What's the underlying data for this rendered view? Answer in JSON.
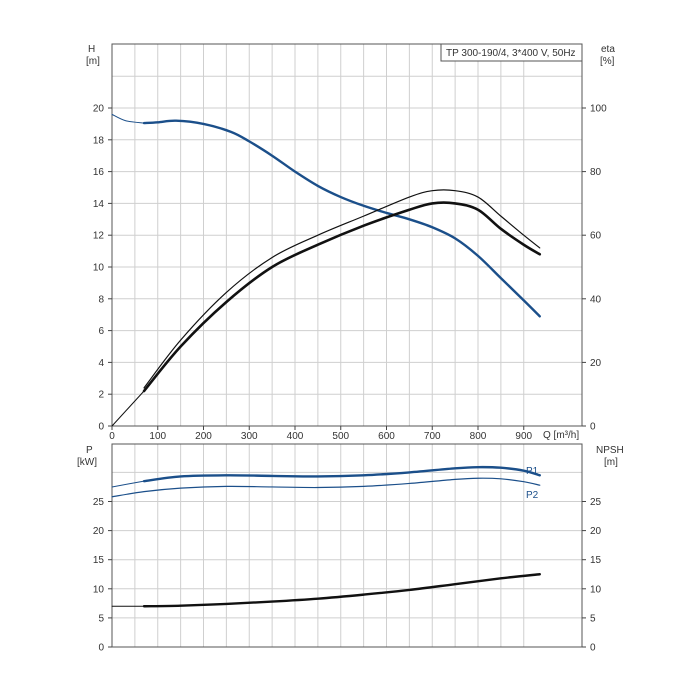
{
  "colors": {
    "blue": "#1b4f8a",
    "black": "#111111",
    "grid": "#cfcfcf"
  },
  "chart_data": [
    {
      "type": "line",
      "title": "TP 300-190/4, 3*400 V, 50Hz",
      "left_axis_label": [
        "H",
        "[m]"
      ],
      "right_axis_label": [
        "eta",
        "[%]"
      ],
      "x_axis_label": "Q [m³/h]",
      "xlim": [
        0,
        940
      ],
      "ylim_left": [
        0,
        22
      ],
      "ylim_right": [
        0,
        100
      ],
      "x_ticks": [
        "0",
        "100",
        "200",
        "300",
        "400",
        "500",
        "600",
        "700",
        "800",
        "900"
      ],
      "left_ticks": [
        "0",
        "2",
        "4",
        "6",
        "8",
        "10",
        "12",
        "14",
        "16",
        "18",
        "20"
      ],
      "right_ticks": [
        "0",
        "20",
        "40",
        "60",
        "80",
        "100"
      ],
      "grid": true,
      "series": [
        {
          "axis": "left",
          "color": "#1b4f8a",
          "width": 2.4,
          "x": [
            70,
            100,
            140,
            200,
            260,
            300,
            350,
            400,
            450,
            500,
            550,
            600,
            650,
            700,
            750,
            800,
            850,
            900,
            935
          ],
          "y": [
            19.05,
            19.1,
            19.2,
            19.0,
            18.5,
            17.9,
            17.0,
            16.0,
            15.1,
            14.4,
            13.85,
            13.4,
            13.0,
            12.5,
            11.8,
            10.7,
            9.3,
            7.9,
            6.9
          ]
        },
        {
          "axis": "left",
          "color": "#1b4f8a",
          "width": 1.0,
          "dashless": true,
          "x": [
            0,
            30,
            70
          ],
          "y": [
            19.6,
            19.2,
            19.05
          ]
        },
        {
          "axis": "right",
          "color": "#111111",
          "width": 1.2,
          "x": [
            70,
            150,
            250,
            350,
            450,
            550,
            650,
            700,
            750,
            800,
            850,
            900,
            935
          ],
          "y": [
            12,
            27,
            42,
            53,
            60,
            66,
            72,
            74,
            74,
            72,
            66,
            60,
            56
          ]
        },
        {
          "axis": "right",
          "color": "#111111",
          "width": 2.6,
          "x": [
            70,
            150,
            250,
            350,
            450,
            550,
            650,
            700,
            750,
            800,
            850,
            900,
            935
          ],
          "y": [
            11,
            25,
            39,
            50,
            57,
            63,
            68,
            70,
            70,
            68,
            62,
            57,
            54
          ]
        },
        {
          "axis": "right",
          "color": "#111111",
          "width": 1.0,
          "x": [
            0,
            70
          ],
          "y": [
            0,
            11
          ]
        }
      ]
    },
    {
      "type": "line",
      "left_axis_label": [
        "P",
        "[kW]"
      ],
      "right_axis_label": [
        "NPSH",
        "[m]"
      ],
      "xlim": [
        0,
        940
      ],
      "ylim_left": [
        0,
        30
      ],
      "ylim_right": [
        0,
        30
      ],
      "left_ticks": [
        "0",
        "5",
        "10",
        "15",
        "20",
        "25"
      ],
      "right_ticks": [
        "0",
        "5",
        "10",
        "15",
        "20",
        "25"
      ],
      "grid": true,
      "series": [
        {
          "name": "P1",
          "axis": "left",
          "color": "#1b4f8a",
          "width": 2.4,
          "x": [
            70,
            150,
            250,
            350,
            450,
            550,
            650,
            750,
            800,
            850,
            900,
            935
          ],
          "y": [
            28.5,
            29.3,
            29.5,
            29.4,
            29.3,
            29.5,
            30.0,
            30.7,
            30.9,
            30.8,
            30.3,
            29.5
          ]
        },
        {
          "axis": "left",
          "color": "#1b4f8a",
          "width": 1.0,
          "x": [
            0,
            70
          ],
          "y": [
            27.5,
            28.5
          ]
        },
        {
          "name": "P2",
          "axis": "left",
          "color": "#1b4f8a",
          "width": 1.2,
          "x": [
            0,
            70,
            150,
            250,
            350,
            450,
            550,
            650,
            750,
            800,
            850,
            900,
            935
          ],
          "y": [
            25.8,
            26.7,
            27.3,
            27.6,
            27.5,
            27.4,
            27.6,
            28.1,
            28.8,
            29.0,
            28.9,
            28.4,
            27.8
          ]
        },
        {
          "axis": "right",
          "color": "#111111",
          "width": 2.4,
          "x": [
            70,
            150,
            250,
            350,
            450,
            550,
            650,
            750,
            850,
            935
          ],
          "y": [
            7.0,
            7.1,
            7.4,
            7.8,
            8.3,
            9.0,
            9.8,
            10.8,
            11.8,
            12.5
          ]
        },
        {
          "axis": "right",
          "color": "#111111",
          "width": 1.0,
          "x": [
            0,
            70
          ],
          "y": [
            7.0,
            7.0
          ]
        }
      ]
    }
  ]
}
